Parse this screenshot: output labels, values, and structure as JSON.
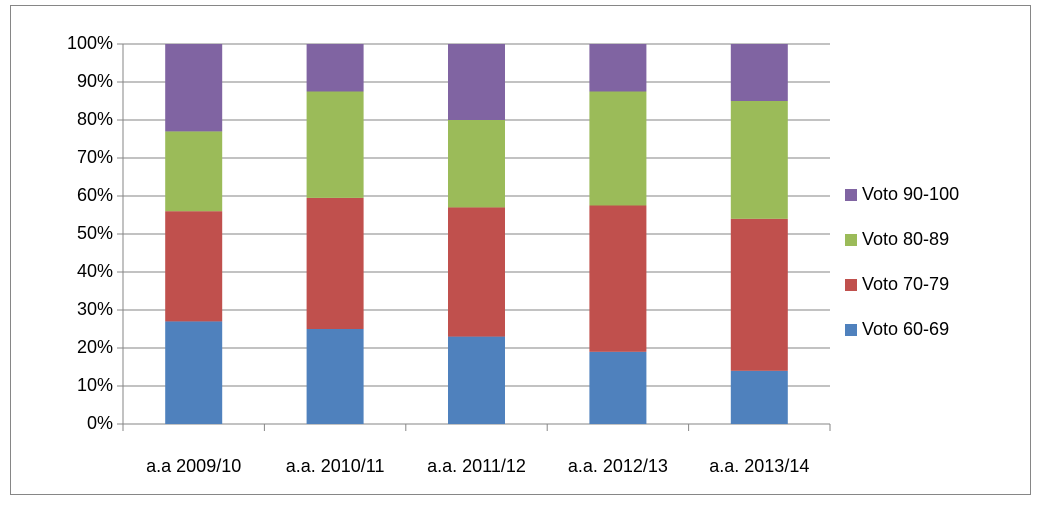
{
  "chart_data": {
    "type": "bar",
    "stacked": true,
    "categories": [
      "a.a 2009/10",
      "a.a. 2010/11",
      "a.a. 2011/12",
      "a.a. 2012/13",
      "a.a. 2013/14"
    ],
    "series": [
      {
        "name": "Voto 60-69",
        "color": "#4f81bd",
        "values": [
          27,
          25,
          23,
          19,
          14
        ]
      },
      {
        "name": "Voto 70-79",
        "color": "#c0504d",
        "values": [
          29,
          34.5,
          34,
          38.5,
          40
        ]
      },
      {
        "name": "Voto 80-89",
        "color": "#9bbb59",
        "values": [
          21,
          28,
          23,
          30,
          31
        ]
      },
      {
        "name": "Voto 90-100",
        "color": "#8064a2",
        "values": [
          23,
          12.5,
          20,
          12.5,
          15
        ]
      }
    ],
    "ylim": [
      0,
      100
    ],
    "yticks": [
      {
        "value": 0,
        "label": "0%"
      },
      {
        "value": 10,
        "label": "10%"
      },
      {
        "value": 20,
        "label": "20%"
      },
      {
        "value": 30,
        "label": "30%"
      },
      {
        "value": 40,
        "label": "40%"
      },
      {
        "value": 50,
        "label": "50%"
      },
      {
        "value": 60,
        "label": "60%"
      },
      {
        "value": 70,
        "label": "70%"
      },
      {
        "value": 80,
        "label": "80%"
      },
      {
        "value": 90,
        "label": "90%"
      },
      {
        "value": 100,
        "label": "100%"
      }
    ],
    "grid": true,
    "legend": "right"
  }
}
